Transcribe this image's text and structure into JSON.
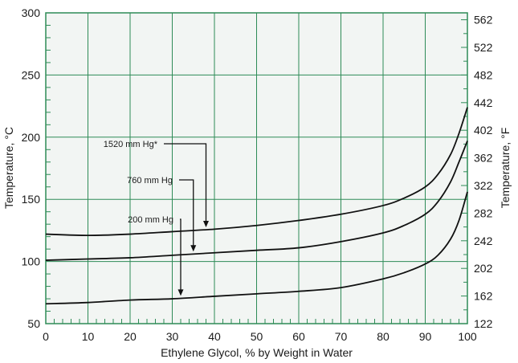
{
  "chart_data": {
    "type": "line",
    "title": "",
    "xlabel": "Ethylene Glycol, % by Weight in Water",
    "ylabel": "Temperature, °C",
    "y2label": "Temperature, °F",
    "xlim": [
      0,
      100
    ],
    "ylim": [
      50,
      300
    ],
    "grid": true,
    "x_ticks": [
      "0",
      "10",
      "20",
      "30",
      "40",
      "50",
      "60",
      "70",
      "80",
      "90",
      "100"
    ],
    "y_ticks": [
      "50",
      "100",
      "150",
      "200",
      "250",
      "300"
    ],
    "y2_ticks": [
      "122",
      "162",
      "202",
      "242",
      "282",
      "322",
      "362",
      "402",
      "442",
      "482",
      "522",
      "562"
    ],
    "series": [
      {
        "name": "1520 mm Hg*",
        "x": [
          0,
          10,
          20,
          30,
          40,
          50,
          60,
          70,
          80,
          85,
          90,
          93,
          96,
          98,
          100
        ],
        "y": [
          122,
          121,
          122,
          124,
          126,
          129,
          133,
          138,
          145,
          151,
          160,
          170,
          186,
          203,
          224
        ]
      },
      {
        "name": "760 mm Hg",
        "x": [
          0,
          10,
          20,
          30,
          40,
          50,
          60,
          70,
          80,
          85,
          90,
          93,
          96,
          98,
          100
        ],
        "y": [
          101,
          102,
          103,
          105,
          107,
          109,
          111,
          116,
          123,
          129,
          138,
          148,
          164,
          180,
          197
        ]
      },
      {
        "name": "200 mm Hg",
        "x": [
          0,
          10,
          20,
          30,
          40,
          50,
          60,
          70,
          80,
          85,
          90,
          93,
          96,
          98,
          100
        ],
        "y": [
          66,
          67,
          69,
          70,
          72,
          74,
          76,
          79,
          86,
          91,
          98,
          105,
          118,
          133,
          156
        ]
      }
    ],
    "annotations": [
      {
        "text": "1520 mm Hg*",
        "series": 0,
        "arrow_x": 38
      },
      {
        "text": "760 mm Hg",
        "series": 1,
        "arrow_x": 35
      },
      {
        "text": "200 mm Hg",
        "series": 2,
        "arrow_x": 32
      }
    ],
    "colors": {
      "plot_background": "#f2f5f3",
      "grid": "#2e8b57",
      "frame": "#2e8b57",
      "line": "#111111"
    }
  }
}
